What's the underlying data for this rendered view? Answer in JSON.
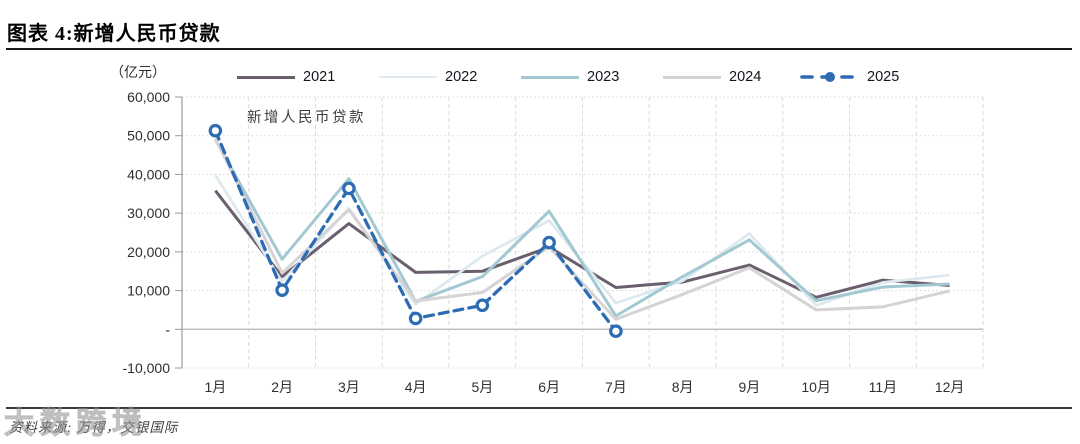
{
  "page": {
    "title": "图表 4:新增人民币贷款",
    "source": "资料来源: 万得，交银国际",
    "watermark": "大数跨境"
  },
  "chart_data": {
    "type": "line",
    "unit_label": "（亿元）",
    "annotation": "新增人民币贷款",
    "categories": [
      "1月",
      "2月",
      "3月",
      "4月",
      "5月",
      "6月",
      "7月",
      "8月",
      "9月",
      "10月",
      "11月",
      "12月"
    ],
    "ylim": [
      -10000,
      60000
    ],
    "ytick_step": 10000,
    "zero_tick_label": "-",
    "grid": true,
    "legend_position": "top",
    "series": [
      {
        "name": "2021",
        "color": "#6a5f6d",
        "dash": null,
        "marker": false,
        "values": [
          35800,
          13600,
          27300,
          14700,
          15000,
          21200,
          10800,
          12200,
          16600,
          8262,
          12700,
          11300
        ]
      },
      {
        "name": "2022",
        "color": "#dde9ef",
        "dash": null,
        "marker": false,
        "values": [
          39800,
          12300,
          31300,
          6454,
          18900,
          28100,
          6790,
          12500,
          24700,
          6152,
          12100,
          14000
        ]
      },
      {
        "name": "2023",
        "color": "#a2c8d2",
        "dash": null,
        "marker": false,
        "values": [
          49000,
          18100,
          38900,
          7188,
          13600,
          30500,
          3459,
          13600,
          23100,
          7384,
          10900,
          11700
        ]
      },
      {
        "name": "2024",
        "color": "#d6d3d6",
        "dash": null,
        "marker": false,
        "values": [
          49200,
          14500,
          30900,
          7300,
          9500,
          21300,
          2600,
          9000,
          15900,
          5000,
          5800,
          9900
        ]
      },
      {
        "name": "2025",
        "color": "#2d6cb3",
        "dash": "9 6",
        "marker": true,
        "values": [
          51300,
          10100,
          36400,
          2800,
          6200,
          22400,
          -500
        ]
      }
    ]
  }
}
